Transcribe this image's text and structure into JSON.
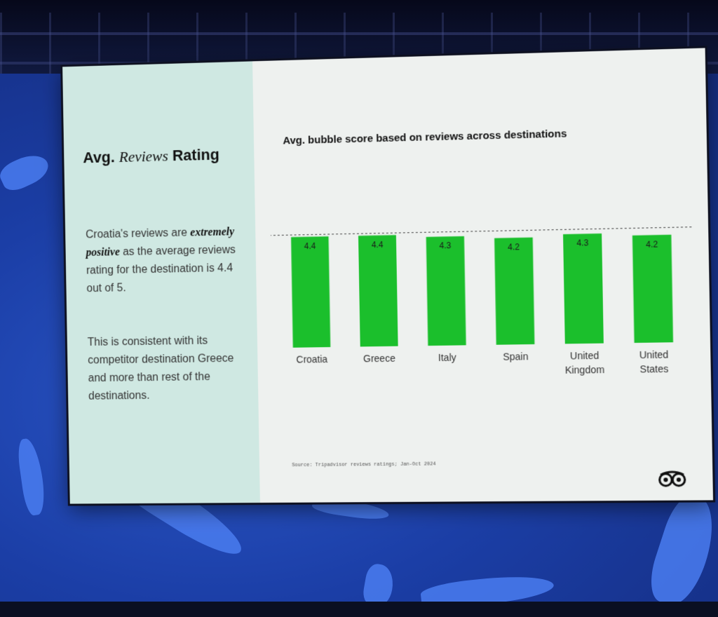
{
  "slide": {
    "heading_prefix": "Avg.",
    "heading_emphasis": "Reviews",
    "heading_suffix": "Rating",
    "para1_a": "Croatia's reviews are",
    "para1_em": "extremely positive",
    "para1_b": "as the average reviews rating for the destination is 4.4 out of 5.",
    "para2": "This is consistent with its competitor destination Greece and more than rest of the destinations.",
    "source": "Source: Tripadvisor reviews ratings; Jan-Oct 2024",
    "logo_icon": "owl-eyes-icon",
    "accent_color": "#1bbf2c",
    "panel_color": "#cfe8e2"
  },
  "chart_data": {
    "type": "bar",
    "title": "Avg. bubble score based on reviews across destinations",
    "xlabel": "",
    "ylabel": "",
    "categories": [
      [
        "Croatia"
      ],
      [
        "Greece"
      ],
      [
        "Italy"
      ],
      [
        "Spain"
      ],
      [
        "United",
        "Kingdom"
      ],
      [
        "United",
        "States"
      ]
    ],
    "values": [
      4.4,
      4.4,
      4.3,
      4.2,
      4.3,
      4.2
    ],
    "value_labels": [
      "4.4",
      "4.4",
      "4.3",
      "4.2",
      "4.3",
      "4.2"
    ],
    "reference_line": 4.4,
    "bar_color": "#1bbf2c",
    "grid": false,
    "legend": "none"
  }
}
